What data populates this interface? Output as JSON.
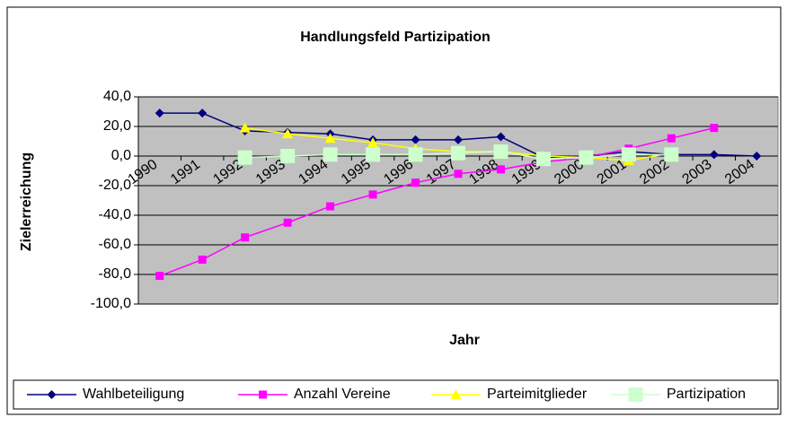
{
  "chart_data": {
    "type": "line",
    "title": "Handlungsfeld Partizipation",
    "x_label": "Jahr",
    "y_label": "Zielerreichung",
    "categories": [
      "1990",
      "1991",
      "1992",
      "1993",
      "1994",
      "1995",
      "1996",
      "1997",
      "1998",
      "1999",
      "2000",
      "2001",
      "2002",
      "2003",
      "2004"
    ],
    "series": [
      {
        "name": "Wahlbeteiligung",
        "color": "#000080",
        "marker": "diamond",
        "values": [
          29,
          29,
          17,
          16,
          15,
          11,
          11,
          11,
          13,
          -1,
          0,
          3,
          1,
          1,
          0
        ]
      },
      {
        "name": "Anzahl Vereine",
        "color": "#ff00ff",
        "marker": "square",
        "values": [
          -81,
          -70,
          -55,
          -45,
          -34,
          -26,
          -18,
          -12,
          -9,
          -4,
          -1,
          5,
          12,
          19,
          null
        ]
      },
      {
        "name": "Parteimitglieder",
        "color": "#ffff00",
        "marker": "triangle",
        "values": [
          null,
          null,
          19,
          15,
          12,
          9,
          5,
          3,
          3,
          0,
          -1,
          -3,
          2,
          null,
          null
        ]
      },
      {
        "name": "Partizipation",
        "color": "#ccffcc",
        "marker": "bigsquare",
        "values": [
          null,
          null,
          -1,
          0,
          1,
          1,
          1,
          2,
          3,
          -2,
          -1,
          1,
          1,
          null,
          null
        ]
      }
    ],
    "ylim": [
      -100,
      40
    ],
    "yticks": [
      {
        "value": -100,
        "label": "-100,0"
      },
      {
        "value": -80,
        "label": "-80,0"
      },
      {
        "value": -60,
        "label": "-60,0"
      },
      {
        "value": -40,
        "label": "-40,0"
      },
      {
        "value": -20,
        "label": "-20,0"
      },
      {
        "value": 0,
        "label": "0,0"
      },
      {
        "value": 20,
        "label": "20,0"
      },
      {
        "value": 40,
        "label": "40,0"
      }
    ],
    "grid": true,
    "plot_background": "#c0c0c0",
    "legend": "bottom"
  }
}
